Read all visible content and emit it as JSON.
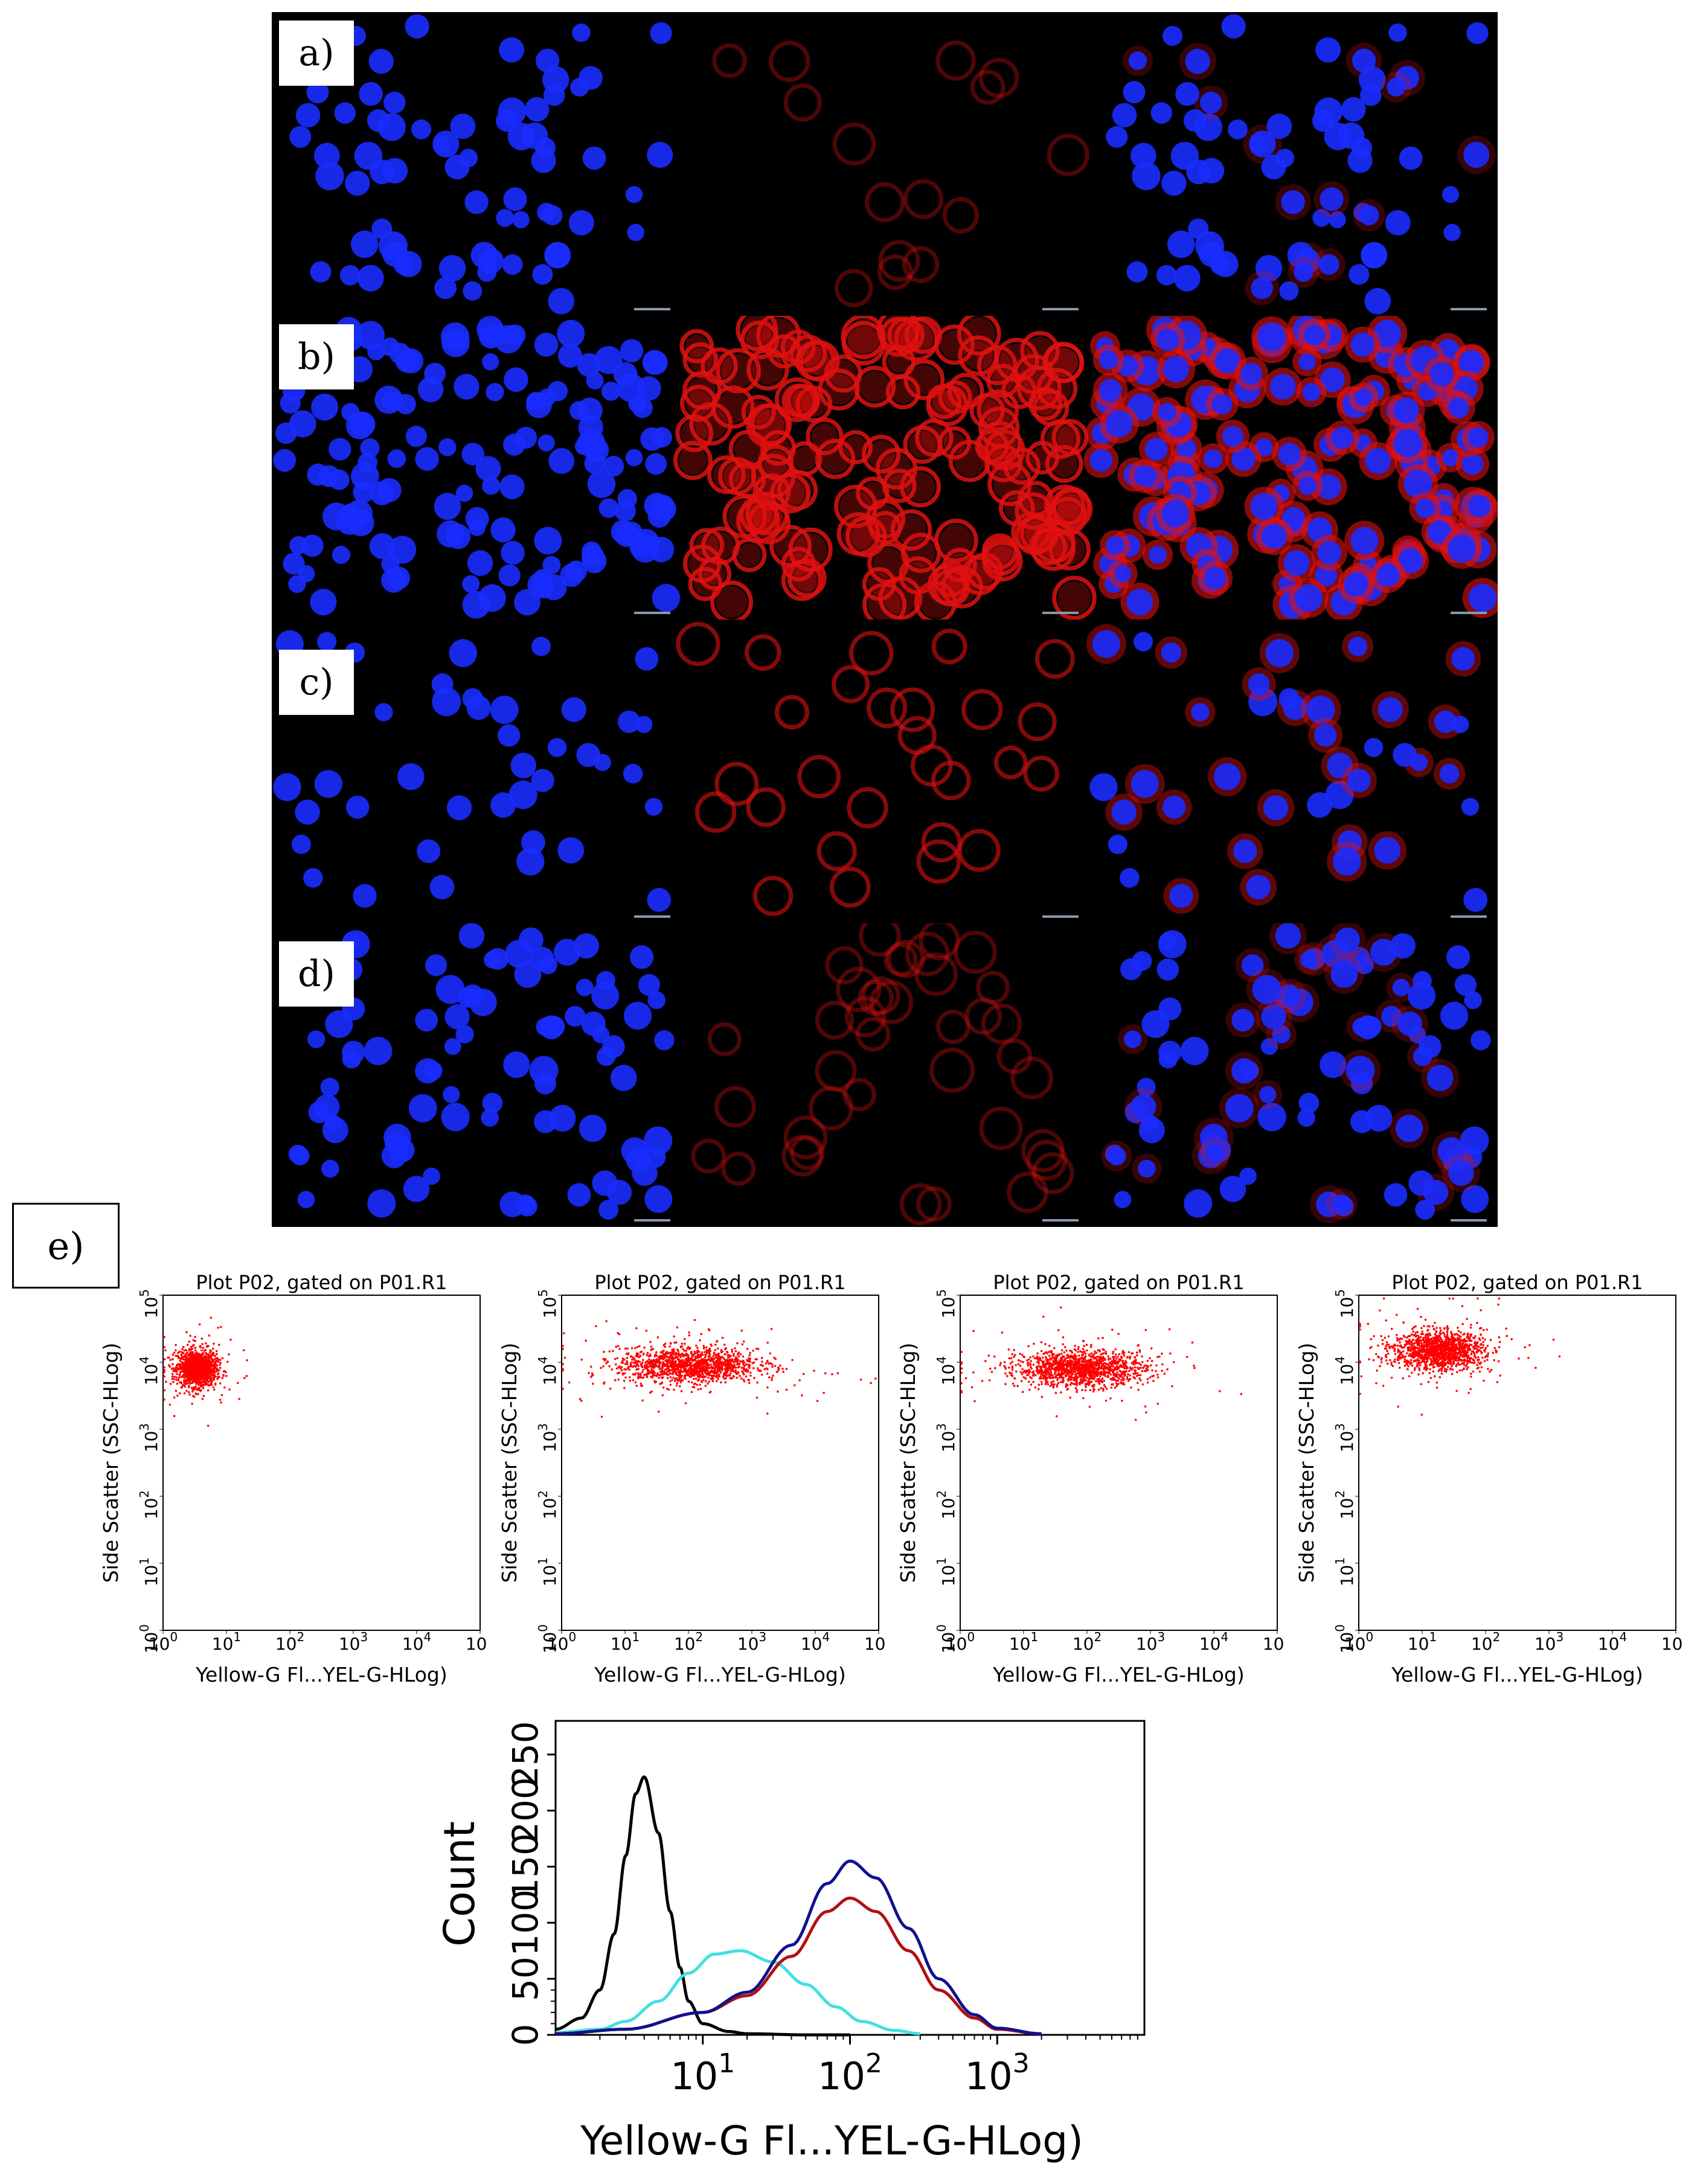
{
  "panels": {
    "labels": [
      "a)",
      "b)",
      "c)",
      "d)",
      "e)"
    ]
  },
  "colors": {
    "nucleus": "#1a2cff",
    "membrane": "#e01010",
    "scatter_points": "#ff0000",
    "background": "#000000"
  },
  "scatter_plots": {
    "title": "Plot P02, gated on P01.R1",
    "xlabel": "Yellow-G Fl...YEL-G-HLog)",
    "ylabel": "Side Scatter (SSC-HLog)"
  },
  "chart_data": [
    {
      "type": "scatter",
      "title": "Plot P02, gated on P01.R1",
      "xlabel": "Yellow-G Fl...YEL-G-HLog)",
      "ylabel": "Side Scatter (SSC-HLog)",
      "xscale": "log",
      "yscale": "log",
      "xlim": [
        1,
        100000
      ],
      "ylim": [
        1,
        100000
      ],
      "cluster": {
        "x_center": 3.5,
        "y_center": 8000,
        "x_spread_decades": 0.15,
        "y_spread_decades": 0.13
      }
    },
    {
      "type": "scatter",
      "title": "Plot P02, gated on P01.R1",
      "xlabel": "Yellow-G Fl...YEL-G-HLog)",
      "ylabel": "Side Scatter (SSC-HLog)",
      "xscale": "log",
      "yscale": "log",
      "xlim": [
        1,
        100000
      ],
      "ylim": [
        1,
        100000
      ],
      "cluster": {
        "x_center": 100,
        "y_center": 9000,
        "x_spread_decades": 0.55,
        "y_spread_decades": 0.13
      }
    },
    {
      "type": "scatter",
      "title": "Plot P02, gated on P01.R1",
      "xlabel": "Yellow-G Fl...YEL-G-HLog)",
      "ylabel": "Side Scatter (SSC-HLog)",
      "xscale": "log",
      "yscale": "log",
      "xlim": [
        1,
        100000
      ],
      "ylim": [
        1,
        100000
      ],
      "cluster": {
        "x_center": 80,
        "y_center": 8000,
        "x_spread_decades": 0.5,
        "y_spread_decades": 0.13
      }
    },
    {
      "type": "scatter",
      "title": "Plot P02, gated on P01.R1",
      "xlabel": "Yellow-G Fl...YEL-G-HLog)",
      "ylabel": "Side Scatter (SSC-HLog)",
      "xscale": "log",
      "yscale": "log",
      "xlim": [
        1,
        100000
      ],
      "ylim": [
        1,
        100000
      ],
      "cluster": {
        "x_center": 18,
        "y_center": 15000,
        "x_spread_decades": 0.35,
        "y_spread_decades": 0.14
      }
    },
    {
      "type": "line",
      "xlabel": "Yellow-G Fl...YEL-G-HLog)",
      "ylabel": "Count",
      "xscale": "log",
      "xlim": [
        1,
        10000
      ],
      "ylim": [
        0,
        280
      ],
      "yticks": [
        0,
        50,
        100,
        150,
        200,
        250
      ],
      "xticks": [
        10,
        100,
        1000
      ],
      "series": [
        {
          "color": "#000000",
          "x": [
            1,
            1.5,
            2,
            2.5,
            3,
            3.5,
            4,
            5,
            6,
            7,
            8,
            10,
            15,
            20,
            50,
            100
          ],
          "y": [
            5,
            15,
            40,
            90,
            160,
            215,
            230,
            180,
            110,
            60,
            30,
            10,
            3,
            1,
            0,
            0
          ]
        },
        {
          "color": "#40e0e0",
          "x": [
            1,
            2,
            3,
            5,
            8,
            12,
            18,
            30,
            50,
            80,
            120,
            200,
            300
          ],
          "y": [
            2,
            5,
            12,
            30,
            55,
            72,
            75,
            65,
            45,
            25,
            12,
            4,
            1
          ]
        },
        {
          "color": "#b01010",
          "x": [
            1,
            3,
            10,
            20,
            40,
            70,
            100,
            150,
            250,
            400,
            700,
            1000,
            2000
          ],
          "y": [
            1,
            5,
            20,
            35,
            70,
            110,
            122,
            110,
            75,
            40,
            15,
            5,
            1
          ]
        },
        {
          "color": "#101090",
          "x": [
            1,
            3,
            10,
            20,
            40,
            70,
            100,
            150,
            250,
            400,
            700,
            1000,
            2000
          ],
          "y": [
            1,
            5,
            20,
            38,
            80,
            135,
            155,
            140,
            95,
            50,
            18,
            6,
            1
          ]
        }
      ]
    }
  ]
}
